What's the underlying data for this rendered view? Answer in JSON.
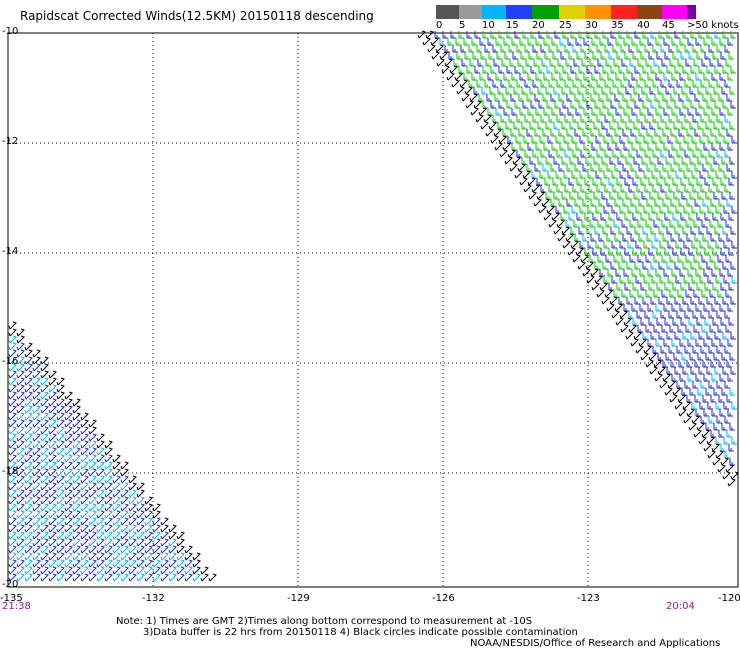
{
  "title": "Rapidscat Corrected Winds(12.5KM) 20150118 descending",
  "colorbar": {
    "unit_label": ">50 knots",
    "tick_labels": [
      "0",
      "5",
      "10",
      "15",
      "20",
      "25",
      "30",
      "35",
      "40",
      "45"
    ],
    "colors": [
      "#555555",
      "#9a9a9a",
      "#00b4ff",
      "#2040ff",
      "#00a000",
      "#e0d000",
      "#ff9000",
      "#ff2020",
      "#8b4513",
      "#ff00ff",
      "#7a00a0"
    ]
  },
  "axes": {
    "y_labels": [
      "-10",
      "-12",
      "-14",
      "-16",
      "-18",
      "-20"
    ],
    "x_labels": [
      "-135",
      "-132",
      "-129",
      "-126",
      "-123",
      "-120"
    ],
    "grid": "dotted"
  },
  "times": {
    "left": "21:38",
    "right": "20:04"
  },
  "notes": {
    "line1": "Note: 1) Times are GMT 2)Times along bottom correspond to measurement at -10S",
    "line2": "3)Data buffer is 22 hrs from 20150118 4) Black circles indicate possible contamination",
    "line3": "NOAA/NESDIS/Office of Research and Applications"
  },
  "wind_colors": {
    "light": "#00b4ff",
    "blue": "#1a2ad8",
    "green": "#00c800",
    "edge": "#000000"
  }
}
